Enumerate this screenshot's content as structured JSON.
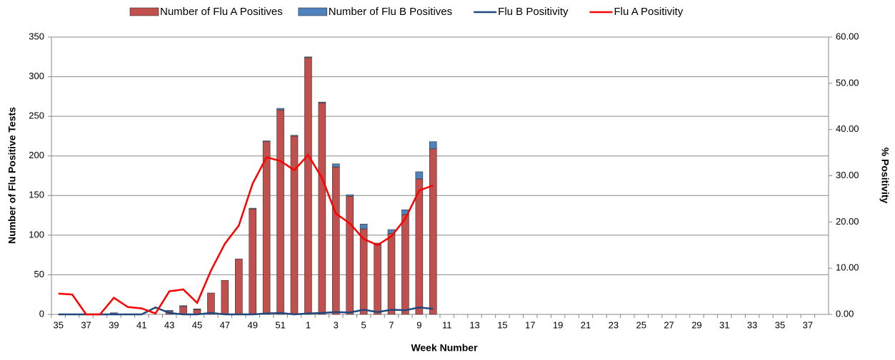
{
  "chart_data": {
    "type": "bar",
    "stacked": true,
    "x_label": "Week Number",
    "y_label": "Number of Flu Positive Tests",
    "y2_label": "% Positivity",
    "categories": [
      "35",
      null,
      "37",
      null,
      "39",
      null,
      "41",
      null,
      "43",
      null,
      "45",
      null,
      "47",
      null,
      "49",
      null,
      "51",
      null,
      "1",
      null,
      "3",
      null,
      "5",
      null,
      "7",
      null,
      "9",
      null,
      "11",
      null,
      "13",
      null,
      "15",
      null,
      "17",
      null,
      "19",
      null,
      "21",
      null,
      "23",
      null,
      "25",
      null,
      "27",
      null,
      "29",
      null,
      "31",
      null,
      "33",
      null,
      "35",
      null,
      "37",
      null
    ],
    "series": [
      {
        "name": "Number of Flu A Positives",
        "type": "bar",
        "color": "#c0504d",
        "values": [
          0,
          0,
          0,
          0,
          1,
          0,
          0,
          0,
          4,
          10,
          6,
          27,
          43,
          70,
          133,
          218,
          258,
          225,
          324,
          267,
          186,
          149,
          108,
          88,
          102,
          126,
          171,
          209,
          null,
          null,
          null,
          null,
          null,
          null,
          null,
          null,
          null,
          null,
          null,
          null,
          null,
          null,
          null,
          null,
          null,
          null,
          null,
          null,
          null,
          null,
          null,
          null,
          null,
          null,
          null,
          null
        ]
      },
      {
        "name": "Number of Flu B Positives",
        "type": "bar",
        "color": "#4f81bd",
        "values": [
          0,
          0,
          0,
          0,
          1,
          0,
          0,
          0,
          1,
          1,
          1,
          0,
          0,
          0,
          1,
          1,
          2,
          1,
          1,
          1,
          4,
          2,
          6,
          2,
          5,
          6,
          9,
          9,
          null,
          null,
          null,
          null,
          null,
          null,
          null,
          null,
          null,
          null,
          null,
          null,
          null,
          null,
          null,
          null,
          null,
          null,
          null,
          null,
          null,
          null,
          null,
          null,
          null,
          null,
          null,
          null
        ]
      },
      {
        "name": "Flu B Positivity",
        "type": "line",
        "axis": "y2",
        "color": "#1f497d",
        "values": [
          0,
          0,
          0,
          0,
          0,
          0,
          0,
          1.5,
          0.3,
          0,
          0,
          0.3,
          0,
          0,
          0,
          0.2,
          0.3,
          0,
          0.2,
          0.3,
          0.5,
          0.4,
          1.0,
          0.5,
          1.0,
          0.9,
          1.5,
          1.2,
          null,
          null,
          null,
          null,
          null,
          null,
          null,
          null,
          null,
          null,
          null,
          null,
          null,
          null,
          null,
          null,
          null,
          null,
          null,
          null,
          null,
          null,
          null,
          null,
          null,
          null,
          null,
          null
        ]
      },
      {
        "name": "Flu A Positivity",
        "type": "line",
        "axis": "y2",
        "color": "#ff0000",
        "values": [
          4.5,
          4.3,
          0,
          0,
          3.6,
          1.6,
          1.3,
          0.2,
          5.0,
          5.4,
          2.5,
          9.5,
          15.3,
          19.2,
          28.3,
          34.0,
          33.2,
          31.2,
          34.5,
          29.5,
          21.8,
          19.7,
          16.3,
          15.0,
          16.9,
          20.7,
          26.8,
          27.9,
          null,
          null,
          null,
          null,
          null,
          null,
          null,
          null,
          null,
          null,
          null,
          null,
          null,
          null,
          null,
          null,
          null,
          null,
          null,
          null,
          null,
          null,
          null,
          null,
          null,
          null,
          null,
          null
        ]
      }
    ],
    "ylim": [
      0,
      350
    ],
    "yticks": [
      0,
      50,
      100,
      150,
      200,
      250,
      300,
      350
    ],
    "y2lim": [
      0,
      60
    ],
    "y2ticks": [
      {
        "value": 0,
        "label": "0.00"
      },
      {
        "value": 10,
        "label": "10.00"
      },
      {
        "value": 20,
        "label": "20.00"
      },
      {
        "value": 30,
        "label": "30.00"
      },
      {
        "value": 40,
        "label": "40.00"
      },
      {
        "value": 50,
        "label": "50.00"
      },
      {
        "value": 60,
        "label": "60.00"
      }
    ],
    "grid": true,
    "legend": "top"
  }
}
